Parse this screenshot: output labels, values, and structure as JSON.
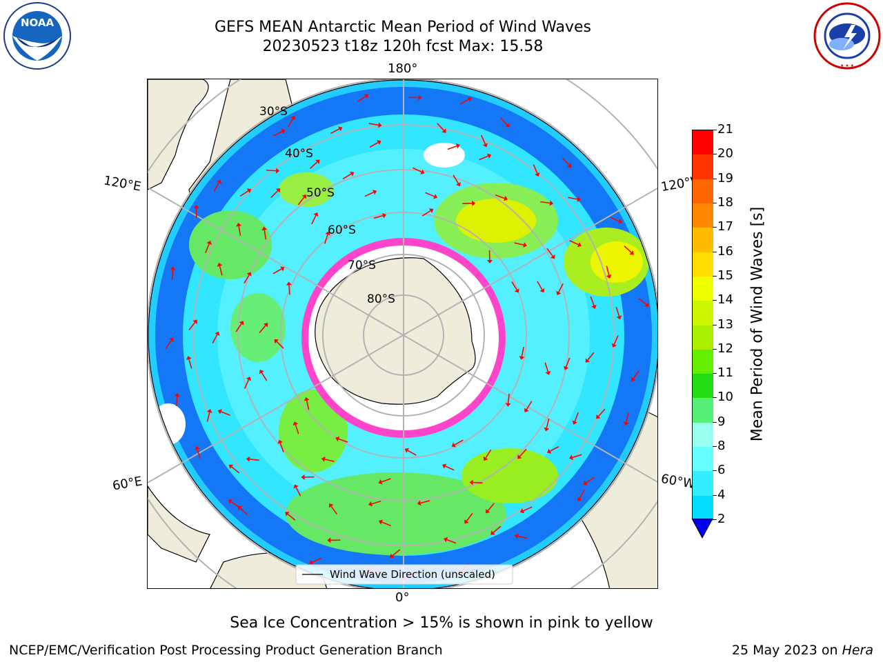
{
  "header": {
    "title_line1": "GEFS MEAN Antarctic Mean Period of Wind Waves",
    "title_line2": "20230523 t18z 120h fcst   Max: 15.58"
  },
  "logos": {
    "left_text": "NOAA",
    "left_ring_text": "NATIONAL OCEANIC AND ATMOSPHERIC ADMINISTRATION · U.S. DEPARTMENT OF COMMERCE",
    "right_ring_text": "NATIONAL WEATHER SERVICE"
  },
  "map": {
    "projection": "south-polar-stereographic",
    "lon_labels": {
      "top": "180°",
      "bottom": "0°",
      "left_upper": "120°E",
      "right_upper": "120°W",
      "left_lower": "60°E",
      "right_lower": "60°W"
    },
    "lat_labels": [
      "30°S",
      "40°S",
      "50°S",
      "60°S",
      "70°S",
      "80°S"
    ],
    "legend_text": "Wind Wave Direction (unscaled)",
    "arrow_color": "#ff0000",
    "ice_color": "#ff33cc",
    "land_color": "#efecdc"
  },
  "colorbar": {
    "label": "Mean Period of Wind Waves [s]",
    "ticks": [
      "2",
      "4",
      "6",
      "8",
      "9",
      "10",
      "11",
      "12",
      "13",
      "14",
      "15",
      "16",
      "17",
      "18",
      "19",
      "20",
      "21"
    ],
    "colors": [
      "#0066ff",
      "#00ddff",
      "#33eeff",
      "#66ffff",
      "#99ffee",
      "#55ee77",
      "#22dd11",
      "#66ee00",
      "#aaee00",
      "#ccf500",
      "#eeff00",
      "#ffdd00",
      "#ffbb00",
      "#ff8800",
      "#ff6600",
      "#ff3300",
      "#ff0000"
    ],
    "extend_color": "#0000ee"
  },
  "note": "Sea Ice Concentration > 15% is shown in pink to yellow",
  "footer": {
    "left": "NCEP/EMC/Verification Post Processing Product Generation Branch",
    "right_prefix": "25 May 2023 on ",
    "right_italic": "Hera"
  }
}
